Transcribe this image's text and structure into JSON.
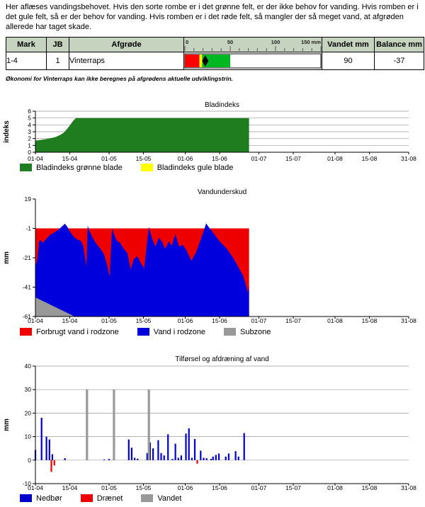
{
  "intro_text": "Her aflæses vandingsbehovet. Hvis den sorte rombe er i det grønne felt, er der ikke behov for vanding. Hvis romben er i det gule felt, så er der behov for vanding. Hvis romben er i det røde felt, så mangler der så meget vand, at afgrøden allerede har taget skade.",
  "note": "Økonomi for Vinterraps kan ikke beregnes på afgrødens aktuelle udviklingstrin.",
  "table": {
    "headers": {
      "mark": "Mark",
      "jb": "JB",
      "afgroede": "Afgrøde",
      "vandet": "Vandet mm",
      "balance": "Balance mm"
    },
    "scale": {
      "max_mm": 150,
      "minor_step_mm": 10,
      "major_mm": [
        0,
        50,
        100,
        150
      ],
      "major_labels": [
        "0",
        "50",
        "100",
        "150 mm"
      ]
    },
    "row": {
      "mark": "1-4",
      "jb": "1",
      "afgroede": "Vinterraps",
      "vandet": "90",
      "balance": "-37",
      "bar": {
        "max_mm": 150,
        "segments": [
          {
            "name": "red-zone",
            "color": "#ff0000",
            "from_mm": 0,
            "to_mm": 16
          },
          {
            "name": "yellow-zone",
            "color": "#ffff00",
            "from_mm": 16,
            "to_mm": 19
          },
          {
            "name": "green-zone",
            "color": "#00b822",
            "from_mm": 19,
            "to_mm": 50
          }
        ],
        "diamond_mm": 22.5,
        "diamond_color": "#000000"
      }
    }
  },
  "chart_axis": {
    "span_days": 152,
    "tick_days": [
      0,
      14,
      30,
      44,
      61,
      75,
      91,
      105,
      122,
      136,
      152
    ],
    "tick_labels": [
      "01-04",
      "15-04",
      "01-05",
      "15-05",
      "01-06",
      "15-06",
      "01-07",
      "15-07",
      "01-08",
      "15-08",
      "31-08"
    ]
  },
  "chart_data": [
    {
      "id": "bladindeks",
      "type": "area",
      "title": "Bladindeks",
      "ylabel": "indeks",
      "ylim": [
        0,
        6
      ],
      "yticks": [
        6,
        5,
        4,
        3,
        2,
        1,
        0
      ],
      "grid": true,
      "xlabel": "",
      "x_range": [
        "01-04",
        "31-08"
      ],
      "layers": [
        {
          "name": "Bladindeks grønne blade",
          "kind": "area",
          "color": "#1f7d1f",
          "baseline": 0,
          "points": [
            [
              0,
              1.7
            ],
            [
              2,
              1.8
            ],
            [
              4,
              1.9
            ],
            [
              6,
              2.05
            ],
            [
              8,
              2.2
            ],
            [
              10,
              2.5
            ],
            [
              11.5,
              2.85
            ],
            [
              13,
              3.45
            ],
            [
              14.2,
              4.0
            ],
            [
              15.4,
              4.6
            ],
            [
              16.5,
              5.0
            ],
            [
              87,
              5.0
            ]
          ]
        }
      ],
      "legend": [
        {
          "label": "Bladindeks grønne blade",
          "color": "#1f7d1f",
          "swatch": "green-swatch"
        },
        {
          "label": "Bladindeks gule blade",
          "color": "#ffff00",
          "swatch": "yellow-swatch"
        }
      ]
    },
    {
      "id": "vandunderskud",
      "type": "area",
      "title": "Vandunderskud",
      "ylabel": "mm",
      "ylim": [
        -61,
        19
      ],
      "yticks": [
        19,
        -1,
        -21,
        -41,
        -61
      ],
      "grid": false,
      "xlabel": "",
      "x_range": [
        "01-04",
        "31-08"
      ],
      "layers": [
        {
          "name": "Forbrugt vand i rodzone",
          "kind": "rect",
          "color": "#ee0000",
          "x": [
            0,
            87
          ],
          "y": [
            -1,
            -61
          ]
        },
        {
          "name": "Vand i rodzone",
          "kind": "area",
          "color": "#0000dd",
          "baseline": -61,
          "points": [
            [
              0,
              -27
            ],
            [
              0.8,
              -22
            ],
            [
              1.5,
              -10
            ],
            [
              2.2,
              -8.8
            ],
            [
              3,
              -11
            ],
            [
              4.5,
              -8
            ],
            [
              6,
              -5.5
            ],
            [
              8,
              -3.5
            ],
            [
              10,
              -1
            ],
            [
              12,
              2.2
            ],
            [
              13,
              0
            ],
            [
              14,
              -3
            ],
            [
              15.5,
              -6.5
            ],
            [
              17,
              -8.5
            ],
            [
              18.5,
              -9.5
            ],
            [
              19.5,
              -13
            ],
            [
              20.8,
              -27
            ],
            [
              21.3,
              1
            ],
            [
              22,
              -3
            ],
            [
              23.5,
              -8
            ],
            [
              25,
              -12
            ],
            [
              26.5,
              -15
            ],
            [
              28,
              -19
            ],
            [
              29.2,
              -26
            ],
            [
              30.2,
              -34
            ],
            [
              31.2,
              -1
            ],
            [
              32,
              -5
            ],
            [
              33,
              -9
            ],
            [
              34.5,
              -11
            ],
            [
              36,
              -15
            ],
            [
              37.5,
              -18
            ],
            [
              38.8,
              -29
            ],
            [
              40,
              -22
            ],
            [
              41.5,
              -20
            ],
            [
              43,
              -25
            ],
            [
              44.3,
              -28
            ],
            [
              46.2,
              0
            ],
            [
              47.5,
              -8
            ],
            [
              48.8,
              -13.5
            ],
            [
              50.3,
              -7.3
            ],
            [
              51.5,
              -10
            ],
            [
              52.8,
              -15
            ],
            [
              54.3,
              -9.8
            ],
            [
              55.5,
              -13
            ],
            [
              57,
              -4.9
            ],
            [
              58.5,
              -13.5
            ],
            [
              60,
              -12.2
            ],
            [
              61.5,
              -16
            ],
            [
              63.5,
              -23
            ],
            [
              65.5,
              -17
            ],
            [
              67,
              -10
            ],
            [
              68.5,
              -3
            ],
            [
              69.5,
              2.4
            ],
            [
              70.5,
              0
            ],
            [
              71.5,
              -2
            ],
            [
              73,
              -5.4
            ],
            [
              75,
              -9.8
            ],
            [
              78,
              -15
            ],
            [
              80.5,
              -21
            ],
            [
              82.5,
              -27
            ],
            [
              84.5,
              -33
            ],
            [
              85.8,
              -40
            ],
            [
              86.5,
              -45
            ],
            [
              87,
              -40
            ]
          ]
        },
        {
          "name": "Subzone",
          "kind": "area",
          "color": "#999999",
          "baseline": -61,
          "points": [
            [
              0,
              -48
            ],
            [
              16,
              -61
            ]
          ]
        }
      ],
      "legend": [
        {
          "label": "Forbrugt vand i rodzone",
          "color": "#ee0000",
          "swatch": "red-swatch"
        },
        {
          "label": "Vand i rodzone",
          "color": "#0000dd",
          "swatch": "blue-swatch"
        },
        {
          "label": "Subzone",
          "color": "#999999",
          "swatch": "gray-swatch"
        }
      ]
    },
    {
      "id": "tilfoersel",
      "type": "bar",
      "title": "Tilførsel og afdræning af vand",
      "ylabel": "mm",
      "ylim": [
        -10,
        40
      ],
      "yticks": [
        40,
        30,
        20,
        10,
        0,
        -10
      ],
      "grid": true,
      "xlabel": "",
      "x_range": [
        "01-04",
        "31-08"
      ],
      "layers": [
        {
          "name": "Nedbør",
          "kind": "bars",
          "color": "#0000cc",
          "width": 2.2,
          "bars": [
            [
              0,
              4.3
            ],
            [
              2.5,
              18
            ],
            [
              4.5,
              10
            ],
            [
              5.7,
              8.8
            ],
            [
              6.9,
              2.5
            ],
            [
              12,
              0.8
            ],
            [
              28,
              0.3
            ],
            [
              30,
              0.5
            ],
            [
              38,
              8.8
            ],
            [
              39.2,
              5.3
            ],
            [
              40.4,
              1
            ],
            [
              41.6,
              0.6
            ],
            [
              45.5,
              3
            ],
            [
              46.7,
              7.5
            ],
            [
              47.9,
              5
            ],
            [
              50,
              8.5
            ],
            [
              51.2,
              3
            ],
            [
              52.4,
              2
            ],
            [
              54,
              11
            ],
            [
              55.8,
              0.5
            ],
            [
              57,
              7
            ],
            [
              58.2,
              1
            ],
            [
              59.4,
              2
            ],
            [
              61.3,
              11.3
            ],
            [
              62.5,
              13.5
            ],
            [
              63.7,
              1
            ],
            [
              64.9,
              9
            ],
            [
              67.3,
              4
            ],
            [
              68.5,
              1
            ],
            [
              69.7,
              0.8
            ],
            [
              71.5,
              0.5
            ],
            [
              72.3,
              1.5
            ],
            [
              73.5,
              2.2
            ],
            [
              74.7,
              2.8
            ],
            [
              77.5,
              1.5
            ],
            [
              78.7,
              2.8
            ],
            [
              81.5,
              3.8
            ],
            [
              82.7,
              1.5
            ],
            [
              85,
              11.5
            ]
          ]
        },
        {
          "name": "Drænet",
          "kind": "bars",
          "color": "#ee0000",
          "width": 2.2,
          "bars": [
            [
              6.5,
              -5
            ],
            [
              7.7,
              -2.3
            ],
            [
              65.9,
              -1.5
            ]
          ]
        },
        {
          "name": "Vandet",
          "kind": "bars",
          "color": "#999999",
          "width": 3.2,
          "bars": [
            [
              21,
              30
            ],
            [
              32,
              30
            ],
            [
              46.2,
              30
            ]
          ]
        }
      ],
      "legend": [
        {
          "label": "Nedbør",
          "color": "#0000cc",
          "swatch": "blue-swatch"
        },
        {
          "label": "Drænet",
          "color": "#ee0000",
          "swatch": "red-swatch"
        },
        {
          "label": "Vandet",
          "color": "#999999",
          "swatch": "gray-swatch"
        }
      ]
    }
  ]
}
